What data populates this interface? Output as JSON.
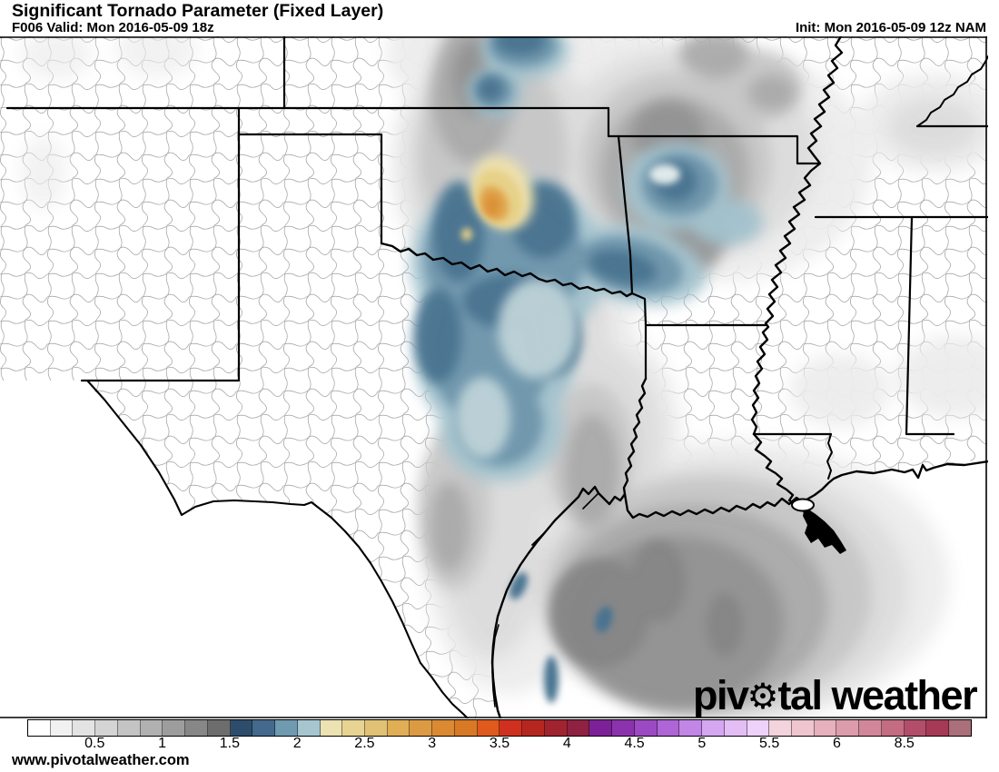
{
  "header": {
    "title": "Significant Tornado Parameter (Fixed Layer)",
    "valid": "F006 Valid: Mon 2016-05-09 18z",
    "init": "Init: Mon 2016-05-09 12z NAM"
  },
  "watermark": {
    "logo_pre": "piv",
    "logo_gear": "⚙",
    "logo_post": "tal weather",
    "url": "www.pivotalweather.com"
  },
  "colorbar": {
    "labels": [
      "0.5",
      "1",
      "1.5",
      "2",
      "2.5",
      "3",
      "3.5",
      "4",
      "4.5",
      "5",
      "5.5",
      "6",
      "8.5"
    ],
    "cells": [
      "#ffffff",
      "#f1f1f1",
      "#e3e3e3",
      "#d4d4d4",
      "#c4c4c4",
      "#b1b1b1",
      "#9d9d9d",
      "#878787",
      "#6d6d6d",
      "#2e4d6c",
      "#44698c",
      "#6f9ab0",
      "#a6c5cf",
      "#ece2b2",
      "#e7d493",
      "#e1c173",
      "#dfae55",
      "#dc9b42",
      "#da8a33",
      "#d87926",
      "#e0591d",
      "#d0301f",
      "#b52621",
      "#a02430",
      "#8f2242",
      "#7d2198",
      "#8b33ad",
      "#9c4ac1",
      "#ae65d5",
      "#c286e6",
      "#d5a7f1",
      "#e3bef5",
      "#efd2fa",
      "#f3d3dc",
      "#efc5d0",
      "#e6b0bd",
      "#dc9cab",
      "#d18799",
      "#c36c82",
      "#b24e69",
      "#a63a55",
      "#a96f7a"
    ]
  },
  "map": {
    "palette": {
      "county_line": "#a8a8a8",
      "border": "#000000",
      "gray_1": "#ececec",
      "gray_2": "#dcdcdc",
      "gray_3": "#c6c6c6",
      "gray_4": "#a9a9a9",
      "gray_5": "#929292",
      "gray_6": "#858585",
      "blue_outer": "#a3c2cd",
      "blue_mid": "#6f96ac",
      "blue_deep": "#497390",
      "blue_pale": "#bed3d8",
      "blue_core_light": "#dfe9e9",
      "yellow_outer": "#ece0ad",
      "yellow_mid": "#e7d189",
      "orange": "#e0a54d",
      "orange_core": "#da9238"
    }
  }
}
